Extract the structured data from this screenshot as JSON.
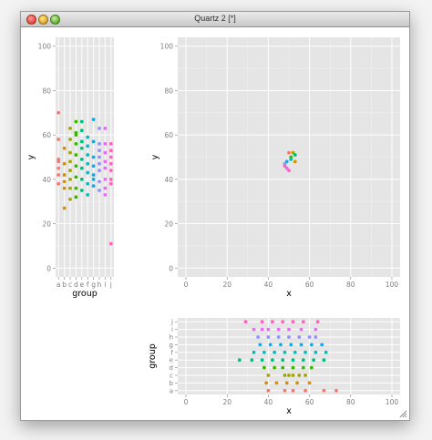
{
  "window": {
    "title": "Quartz 2 [*]"
  },
  "colors": {
    "panel_bg": "#e5e5e5",
    "grid": "#ffffff",
    "text": "#333333",
    "groups": {
      "a": "#F8766D",
      "b": "#D89000",
      "c": "#A3A500",
      "d": "#39B600",
      "e": "#00BF7D",
      "f": "#00BFC4",
      "g": "#00B0F6",
      "h": "#9590FF",
      "i": "#E76BF3",
      "j": "#FF62BC"
    }
  },
  "chart_data": [
    {
      "type": "scatter",
      "title": "",
      "xlabel": "group",
      "ylabel": "y",
      "categories": [
        "a",
        "b",
        "c",
        "d",
        "e",
        "f",
        "g",
        "h",
        "i",
        "j"
      ],
      "yticks": [
        0,
        20,
        40,
        60,
        80,
        100
      ],
      "ylim": [
        -4,
        104
      ],
      "grid": true,
      "points": [
        [
          "a",
          70
        ],
        [
          "a",
          58
        ],
        [
          "a",
          48
        ],
        [
          "a",
          45
        ],
        [
          "a",
          42
        ],
        [
          "a",
          38
        ],
        [
          "a",
          49
        ],
        [
          "b",
          54
        ],
        [
          "b",
          47
        ],
        [
          "b",
          42
        ],
        [
          "b",
          39
        ],
        [
          "b",
          36
        ],
        [
          "b",
          27
        ],
        [
          "c",
          63
        ],
        [
          "c",
          58
        ],
        [
          "c",
          52
        ],
        [
          "c",
          48
        ],
        [
          "c",
          44
        ],
        [
          "c",
          40
        ],
        [
          "c",
          36
        ],
        [
          "c",
          31
        ],
        [
          "d",
          66
        ],
        [
          "d",
          61
        ],
        [
          "d",
          56
        ],
        [
          "d",
          51
        ],
        [
          "d",
          46
        ],
        [
          "d",
          41
        ],
        [
          "d",
          36
        ],
        [
          "d",
          32
        ],
        [
          "d",
          60
        ],
        [
          "e",
          66
        ],
        [
          "e",
          62
        ],
        [
          "e",
          57
        ],
        [
          "e",
          54
        ],
        [
          "e",
          49
        ],
        [
          "e",
          45
        ],
        [
          "e",
          40
        ],
        [
          "e",
          35
        ],
        [
          "f",
          59
        ],
        [
          "f",
          55
        ],
        [
          "f",
          51
        ],
        [
          "f",
          47
        ],
        [
          "f",
          43
        ],
        [
          "f",
          38
        ],
        [
          "f",
          33
        ],
        [
          "g",
          67
        ],
        [
          "g",
          57
        ],
        [
          "g",
          50
        ],
        [
          "g",
          46
        ],
        [
          "g",
          42
        ],
        [
          "g",
          40
        ],
        [
          "g",
          37
        ],
        [
          "h",
          63
        ],
        [
          "h",
          56
        ],
        [
          "h",
          53
        ],
        [
          "h",
          50
        ],
        [
          "h",
          47
        ],
        [
          "h",
          44
        ],
        [
          "h",
          39
        ],
        [
          "h",
          35
        ],
        [
          "i",
          63
        ],
        [
          "i",
          56
        ],
        [
          "i",
          52
        ],
        [
          "i",
          48
        ],
        [
          "i",
          45
        ],
        [
          "i",
          40
        ],
        [
          "i",
          36
        ],
        [
          "i",
          33
        ],
        [
          "j",
          56
        ],
        [
          "j",
          53
        ],
        [
          "j",
          50
        ],
        [
          "j",
          47
        ],
        [
          "j",
          44
        ],
        [
          "j",
          40
        ],
        [
          "j",
          38
        ],
        [
          "j",
          11
        ]
      ]
    },
    {
      "type": "scatter",
      "title": "",
      "xlabel": "x",
      "ylabel": "y",
      "xticks": [
        0,
        20,
        40,
        60,
        80,
        100
      ],
      "yticks": [
        0,
        20,
        40,
        60,
        80,
        100
      ],
      "xlim": [
        -4,
        104
      ],
      "ylim": [
        -4,
        104
      ],
      "grid": true,
      "points": [
        [
          50,
          52,
          "a"
        ],
        [
          53,
          48,
          "b"
        ],
        [
          52,
          52,
          "c"
        ],
        [
          51,
          50,
          "d"
        ],
        [
          53,
          51,
          "e"
        ],
        [
          51,
          49,
          "f"
        ],
        [
          49,
          48,
          "g"
        ],
        [
          48,
          47,
          "h"
        ],
        [
          49,
          45,
          "i"
        ],
        [
          50,
          44,
          "j"
        ],
        [
          48,
          46,
          "j"
        ]
      ]
    },
    {
      "type": "scatter",
      "title": "",
      "xlabel": "x",
      "ylabel": "group",
      "categories": [
        "a",
        "b",
        "c",
        "d",
        "e",
        "f",
        "g",
        "h",
        "i",
        "j"
      ],
      "xticks": [
        0,
        20,
        40,
        60,
        80,
        100
      ],
      "xlim": [
        -4,
        104
      ],
      "grid": true,
      "points": [
        [
          "a",
          40
        ],
        [
          "a",
          48
        ],
        [
          "a",
          52
        ],
        [
          "a",
          58
        ],
        [
          "a",
          67
        ],
        [
          "a",
          73
        ],
        [
          "b",
          39
        ],
        [
          "b",
          44
        ],
        [
          "b",
          49
        ],
        [
          "b",
          54
        ],
        [
          "b",
          60
        ],
        [
          "c",
          40
        ],
        [
          "c",
          48
        ],
        [
          "c",
          50
        ],
        [
          "c",
          52
        ],
        [
          "c",
          55
        ],
        [
          "c",
          58
        ],
        [
          "d",
          38
        ],
        [
          "d",
          43
        ],
        [
          "d",
          47
        ],
        [
          "d",
          52
        ],
        [
          "d",
          57
        ],
        [
          "d",
          61
        ],
        [
          "e",
          26
        ],
        [
          "e",
          32
        ],
        [
          "e",
          37
        ],
        [
          "e",
          42
        ],
        [
          "e",
          47
        ],
        [
          "e",
          52
        ],
        [
          "e",
          57
        ],
        [
          "e",
          62
        ],
        [
          "e",
          67
        ],
        [
          "f",
          33
        ],
        [
          "f",
          38
        ],
        [
          "f",
          43
        ],
        [
          "f",
          48
        ],
        [
          "f",
          53
        ],
        [
          "f",
          58
        ],
        [
          "f",
          63
        ],
        [
          "f",
          68
        ],
        [
          "g",
          36
        ],
        [
          "g",
          41
        ],
        [
          "g",
          46
        ],
        [
          "g",
          51
        ],
        [
          "g",
          56
        ],
        [
          "g",
          61
        ],
        [
          "g",
          66
        ],
        [
          "h",
          35
        ],
        [
          "h",
          40
        ],
        [
          "h",
          45
        ],
        [
          "h",
          50
        ],
        [
          "h",
          55
        ],
        [
          "h",
          60
        ],
        [
          "h",
          63
        ],
        [
          "i",
          33
        ],
        [
          "i",
          37
        ],
        [
          "i",
          40
        ],
        [
          "i",
          45
        ],
        [
          "i",
          50
        ],
        [
          "i",
          56
        ],
        [
          "i",
          63
        ],
        [
          "j",
          29
        ],
        [
          "j",
          37
        ],
        [
          "j",
          42
        ],
        [
          "j",
          47
        ],
        [
          "j",
          52
        ],
        [
          "j",
          57
        ],
        [
          "j",
          64
        ]
      ]
    }
  ]
}
